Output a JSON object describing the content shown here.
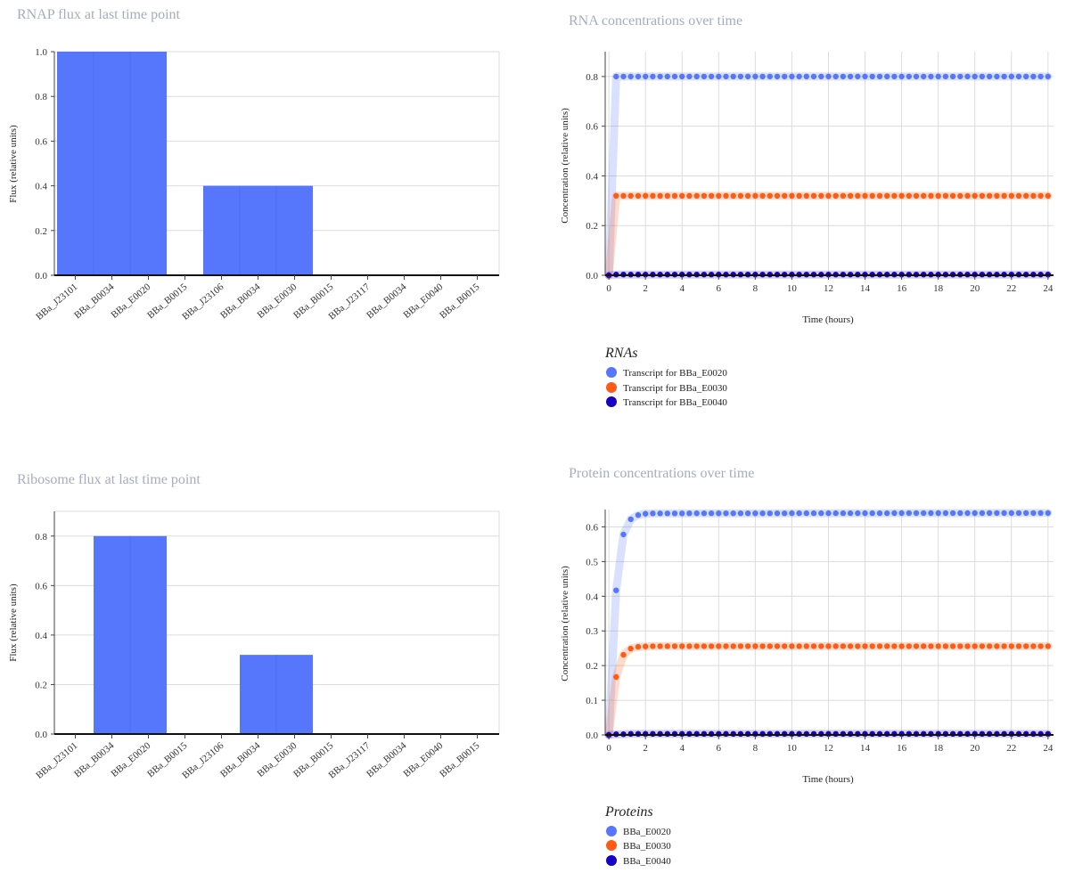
{
  "colors": {
    "bar": "#5677fc",
    "transcript_e0020": "#5677fc",
    "transcript_e0030": "#ff5b14",
    "transcript_e0040": "#1500c4",
    "title": "#a5adbd"
  },
  "chart_data": [
    {
      "id": "rnap",
      "type": "bar",
      "title": "RNAP flux at last time point",
      "xlabel": "",
      "ylabel": "Flux (relative units)",
      "ylim": [
        0,
        1.0
      ],
      "yticks": [
        "0.0",
        "0.2",
        "0.4",
        "0.6",
        "0.8",
        "1.0"
      ],
      "categories": [
        "BBa_J23101",
        "BBa_B0034",
        "BBa_E0020",
        "BBa_B0015",
        "BBa_J23106",
        "BBa_B0034",
        "BBa_E0030",
        "BBa_B0015",
        "BBa_J23117",
        "BBa_B0034",
        "BBa_E0040",
        "BBa_B0015"
      ],
      "values": [
        1.0,
        1.0,
        1.0,
        0,
        0.4,
        0.4,
        0.4,
        0,
        0.003,
        0.003,
        0.003,
        0
      ],
      "grid": true
    },
    {
      "id": "ribosome",
      "type": "bar",
      "title": "Ribosome flux at last time point",
      "xlabel": "",
      "ylabel": "Flux (relative units)",
      "ylim": [
        0,
        0.9
      ],
      "yticks": [
        "0.0",
        "0.2",
        "0.4",
        "0.6",
        "0.8"
      ],
      "categories": [
        "BBa_J23101",
        "BBa_B0034",
        "BBa_E0020",
        "BBa_B0015",
        "BBa_J23106",
        "BBa_B0034",
        "BBa_E0030",
        "BBa_B0015",
        "BBa_J23117",
        "BBa_B0034",
        "BBa_E0040",
        "BBa_B0015"
      ],
      "values": [
        0,
        0.8,
        0.8,
        0,
        0,
        0.32,
        0.32,
        0,
        0,
        0.003,
        0.003,
        0
      ],
      "grid": true
    },
    {
      "id": "rna",
      "type": "line",
      "title": "RNA concentrations over time",
      "xlabel": "Time (hours)",
      "ylabel": "Concentration (relative units)",
      "xlim": [
        -0.2,
        24.3
      ],
      "ylim": [
        0,
        0.9
      ],
      "xticks": [
        "0",
        "2",
        "4",
        "6",
        "8",
        "10",
        "12",
        "14",
        "16",
        "18",
        "20",
        "22",
        "24"
      ],
      "yticks": [
        "0.0",
        "0.2",
        "0.4",
        "0.6",
        "0.8"
      ],
      "legend_title": "RNAs",
      "grid": true,
      "series": [
        {
          "name": "Transcript for BBa_E0020",
          "values": [
            0,
            0.8,
            0.8,
            0.8
          ]
        },
        {
          "name": "Transcript for BBa_E0030",
          "values": [
            0,
            0.32,
            0.32,
            0.32
          ]
        },
        {
          "name": "Transcript for BBa_E0040",
          "values": [
            0,
            0.003,
            0.003,
            0.003
          ]
        }
      ],
      "x": [
        0,
        0.4,
        0.8,
        24
      ]
    },
    {
      "id": "protein",
      "type": "line",
      "title": "Protein concentrations over time",
      "xlabel": "Time (hours)",
      "ylabel": "Concentration (relative units)",
      "xlim": [
        -0.2,
        24.3
      ],
      "ylim": [
        0,
        0.65
      ],
      "xticks": [
        "0",
        "2",
        "4",
        "6",
        "8",
        "10",
        "12",
        "14",
        "16",
        "18",
        "20",
        "22",
        "24"
      ],
      "yticks": [
        "0.0",
        "0.1",
        "0.2",
        "0.3",
        "0.4",
        "0.5",
        "0.6"
      ],
      "legend_title": "Proteins",
      "grid": true,
      "series": [
        {
          "name": "BBa_E0020",
          "values": [
            0,
            0.417,
            0.578,
            0.622,
            0.634,
            0.638,
            0.639,
            0.64
          ]
        },
        {
          "name": "BBa_E0030",
          "values": [
            0,
            0.167,
            0.231,
            0.249,
            0.254,
            0.255,
            0.256,
            0.256
          ]
        },
        {
          "name": "BBa_E0040",
          "values": [
            0,
            0.002,
            0.002,
            0.003,
            0.003,
            0.003,
            0.003,
            0.003
          ]
        }
      ],
      "x": [
        0,
        0.4,
        0.8,
        1.2,
        1.6,
        2.0,
        2.4,
        24
      ]
    }
  ]
}
